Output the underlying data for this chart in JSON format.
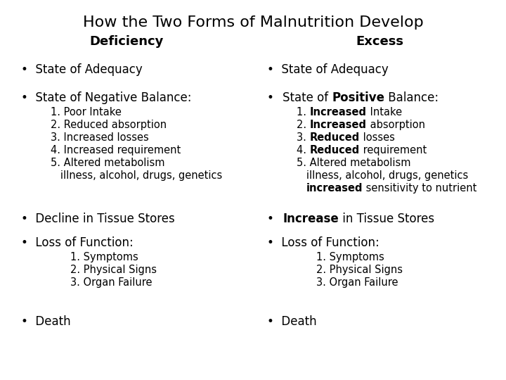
{
  "title": "How the Two Forms of Malnutrition Develop",
  "subtitle_left": "Deficiency",
  "subtitle_right": "Excess",
  "bg_color": "#ffffff",
  "text_color": "#000000",
  "title_fs": 16,
  "subtitle_fs": 13,
  "body_fs": 12,
  "sub_fs": 10.5,
  "figw": 7.2,
  "figh": 5.4,
  "dpi": 100
}
